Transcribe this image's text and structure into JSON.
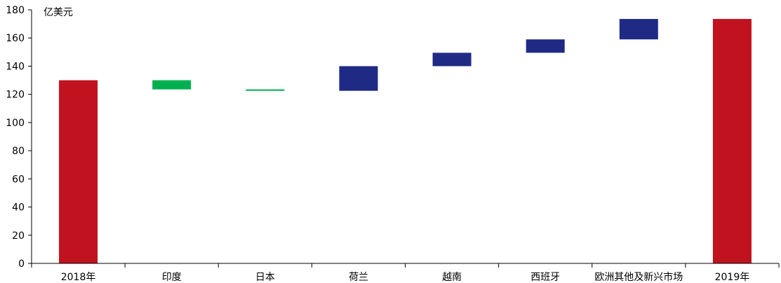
{
  "chart_data": {
    "type": "bar",
    "subtype": "waterfall",
    "ylabel": "亿美元",
    "ylim": [
      0,
      180
    ],
    "yticks": [
      0,
      20,
      40,
      60,
      80,
      100,
      120,
      140,
      160,
      180
    ],
    "grid": false,
    "categories": [
      "2018年",
      "印度",
      "日本",
      "荷兰",
      "越南",
      "西班牙",
      "欧洲其他及新兴市场",
      "2019年"
    ],
    "bars": [
      {
        "kind": "total",
        "start": 0,
        "end": 130
      },
      {
        "kind": "decrease",
        "start": 130,
        "end": 123.5
      },
      {
        "kind": "decrease",
        "start": 123.5,
        "end": 122.5
      },
      {
        "kind": "increase",
        "start": 122.5,
        "end": 140
      },
      {
        "kind": "increase",
        "start": 140,
        "end": 149.5
      },
      {
        "kind": "increase",
        "start": 149.5,
        "end": 159
      },
      {
        "kind": "increase",
        "start": 159,
        "end": 173.5
      },
      {
        "kind": "total",
        "start": 0,
        "end": 173.5
      }
    ],
    "colors": {
      "total": "#c0121f",
      "decrease": "#00b050",
      "increase": "#1f2a85",
      "axis": "#000000"
    }
  }
}
